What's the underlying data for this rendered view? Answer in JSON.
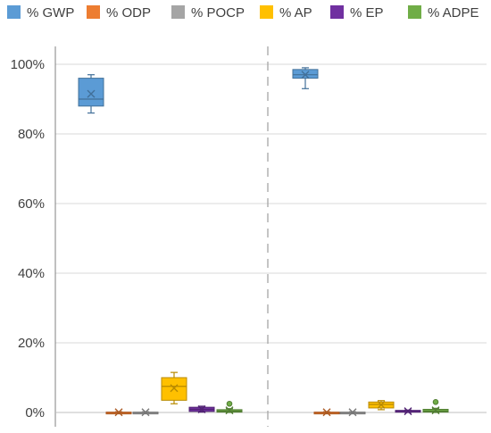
{
  "chart_data": {
    "type": "box",
    "title": "",
    "xlabel": "",
    "ylabel": "",
    "ylim": [
      0,
      100
    ],
    "yticks": [
      0,
      20,
      40,
      60,
      80,
      100
    ],
    "ytick_labels": [
      "0%",
      "20%",
      "40%",
      "60%",
      "80%",
      "100%"
    ],
    "grid": true,
    "legend_position": "top",
    "group_separator": "dashed vertical line",
    "series": [
      {
        "name": "% GWP",
        "color": "#5B9BD5"
      },
      {
        "name": "% ODP",
        "color": "#ED7D31"
      },
      {
        "name": "% POCP",
        "color": "#A5A5A5"
      },
      {
        "name": "% AP",
        "color": "#FFC000"
      },
      {
        "name": "% EP",
        "color": "#7030A0"
      },
      {
        "name": "% ADPE",
        "color": "#70AD47"
      }
    ],
    "groups": [
      {
        "boxes": [
          {
            "series": 0,
            "min": 86,
            "q1": 88,
            "median": 90,
            "q3": 96,
            "max": 97,
            "mean": 91.5,
            "outliers": []
          },
          {
            "series": 1,
            "min": 0,
            "q1": 0,
            "median": 0,
            "q3": 0.1,
            "max": 0.2,
            "mean": 0.05,
            "outliers": []
          },
          {
            "series": 2,
            "min": 0,
            "q1": 0,
            "median": 0,
            "q3": 0.1,
            "max": 0.2,
            "mean": 0.05,
            "outliers": []
          },
          {
            "series": 3,
            "min": 2.5,
            "q1": 3.5,
            "median": 7.5,
            "q3": 10,
            "max": 11.5,
            "mean": 7,
            "outliers": []
          },
          {
            "series": 4,
            "min": 0.1,
            "q1": 0.3,
            "median": 0.9,
            "q3": 1.5,
            "max": 1.8,
            "mean": 0.9,
            "outliers": []
          },
          {
            "series": 5,
            "min": 0,
            "q1": 0.1,
            "median": 0.4,
            "q3": 0.8,
            "max": 1.1,
            "mean": 0.6,
            "outliers": [
              2.5
            ]
          }
        ]
      },
      {
        "boxes": [
          {
            "series": 0,
            "min": 93,
            "q1": 96,
            "median": 97,
            "q3": 98.5,
            "max": 99,
            "mean": 97,
            "outliers": []
          },
          {
            "series": 1,
            "min": 0,
            "q1": 0,
            "median": 0,
            "q3": 0.1,
            "max": 0.2,
            "mean": 0.05,
            "outliers": []
          },
          {
            "series": 2,
            "min": 0,
            "q1": 0,
            "median": 0,
            "q3": 0.1,
            "max": 0.2,
            "mean": 0.05,
            "outliers": []
          },
          {
            "series": 3,
            "min": 0.8,
            "q1": 1.3,
            "median": 2.3,
            "q3": 3.0,
            "max": 3.4,
            "mean": 2.2,
            "outliers": []
          },
          {
            "series": 4,
            "min": 0,
            "q1": 0.1,
            "median": 0.3,
            "q3": 0.6,
            "max": 0.7,
            "mean": 0.35,
            "outliers": []
          },
          {
            "series": 5,
            "min": 0,
            "q1": 0.1,
            "median": 0.4,
            "q3": 0.9,
            "max": 1.2,
            "mean": 0.6,
            "outliers": [
              3.0
            ]
          }
        ]
      }
    ]
  }
}
